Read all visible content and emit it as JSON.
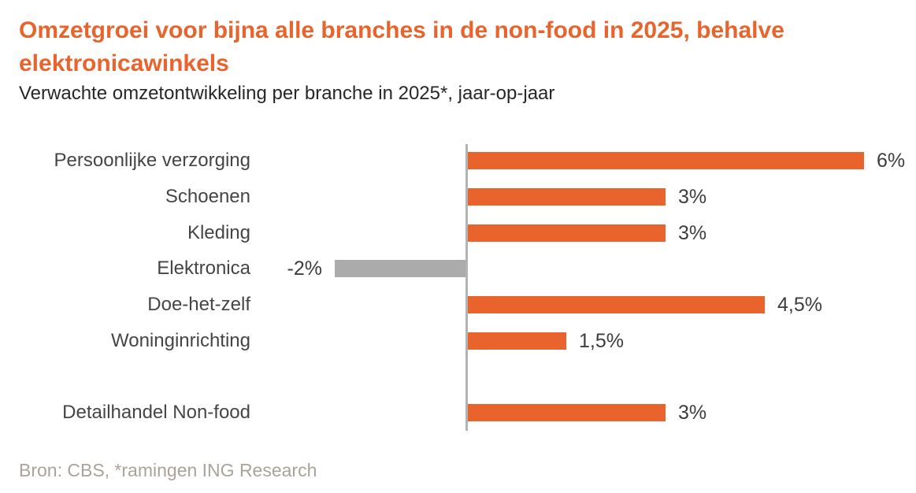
{
  "header": {
    "title": "Omzetgroei voor bijna alle branches in de non-food in 2025, behalve elektronicawinkels",
    "subtitle": "Verwachte omzetontwikkeling per branche in 2025*, jaar-op-jaar",
    "title_color": "#E8642C"
  },
  "chart_data": {
    "type": "bar",
    "orientation": "horizontal",
    "title": "Omzetgroei voor bijna alle branches in de non-food in 2025, behalve elektronicawinkels",
    "subtitle": "Verwachte omzetontwikkeling per branche in 2025*, jaar-op-jaar",
    "categories": [
      "Persoonlijke verzorging",
      "Schoenen",
      "Kleding",
      "Elektronica",
      "Doe-het-zelf",
      "Woninginrichting",
      "Detailhandel Non-food"
    ],
    "values": [
      6,
      3,
      3,
      -2,
      4.5,
      1.5,
      3
    ],
    "value_labels": [
      "6%",
      "3%",
      "3%",
      "-2%",
      "4,5%",
      "1,5%",
      "3%"
    ],
    "unit": "%",
    "positive_color": "#E8642C",
    "negative_color": "#ABABAB",
    "axis_line_color": "#B3B3B3",
    "xlim": [
      -2,
      6.5
    ],
    "gridlines": false,
    "legend": false,
    "separated_last_row": true
  },
  "footer": {
    "source": "Bron: CBS, *ramingen ING Research"
  }
}
